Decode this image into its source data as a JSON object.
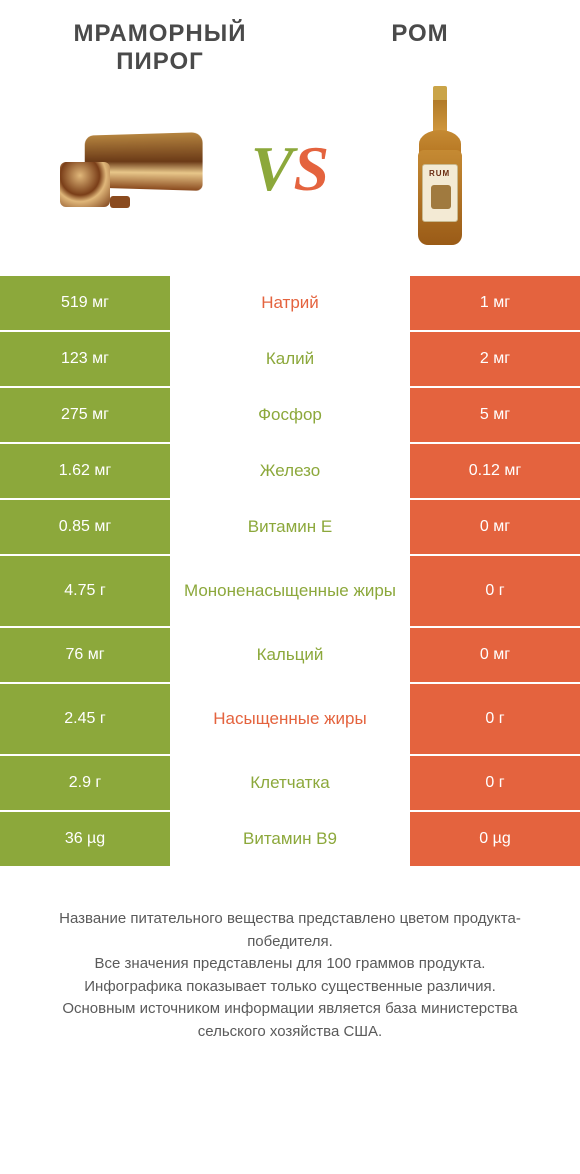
{
  "header": {
    "left_title": "МРАМОРНЫЙ ПИРОГ",
    "right_title": "РОМ"
  },
  "vs": {
    "v": "V",
    "s": "S"
  },
  "colors": {
    "green": "#8ca83b",
    "orange": "#e4633e",
    "mid_bg": "#ffffff",
    "text": "#4a4a4a"
  },
  "table": {
    "left_bg": "#8ca83b",
    "right_bg": "#e4633e",
    "rows": [
      {
        "left": "519 мг",
        "label": "Натрий",
        "right": "1 мг",
        "label_color": "#e4633e",
        "tall": false
      },
      {
        "left": "123 мг",
        "label": "Калий",
        "right": "2 мг",
        "label_color": "#8ca83b",
        "tall": false
      },
      {
        "left": "275 мг",
        "label": "Фосфор",
        "right": "5 мг",
        "label_color": "#8ca83b",
        "tall": false
      },
      {
        "left": "1.62 мг",
        "label": "Железо",
        "right": "0.12 мг",
        "label_color": "#8ca83b",
        "tall": false
      },
      {
        "left": "0.85 мг",
        "label": "Витамин E",
        "right": "0 мг",
        "label_color": "#8ca83b",
        "tall": false
      },
      {
        "left": "4.75 г",
        "label": "Мононенасыщенные жиры",
        "right": "0 г",
        "label_color": "#8ca83b",
        "tall": true
      },
      {
        "left": "76 мг",
        "label": "Кальций",
        "right": "0 мг",
        "label_color": "#8ca83b",
        "tall": false
      },
      {
        "left": "2.45 г",
        "label": "Насыщенные жиры",
        "right": "0 г",
        "label_color": "#e4633e",
        "tall": true
      },
      {
        "left": "2.9 г",
        "label": "Клетчатка",
        "right": "0 г",
        "label_color": "#8ca83b",
        "tall": false
      },
      {
        "left": "36 µg",
        "label": "Витамин B9",
        "right": "0 µg",
        "label_color": "#8ca83b",
        "tall": false
      }
    ]
  },
  "footer": {
    "line1": "Название питательного вещества представлено цветом продукта-победителя.",
    "line2": "Все значения представлены для 100 граммов продукта.",
    "line3": "Инфографика показывает только существенные различия.",
    "line4": "Основным источником информации является база министерства сельского хозяйства США."
  }
}
